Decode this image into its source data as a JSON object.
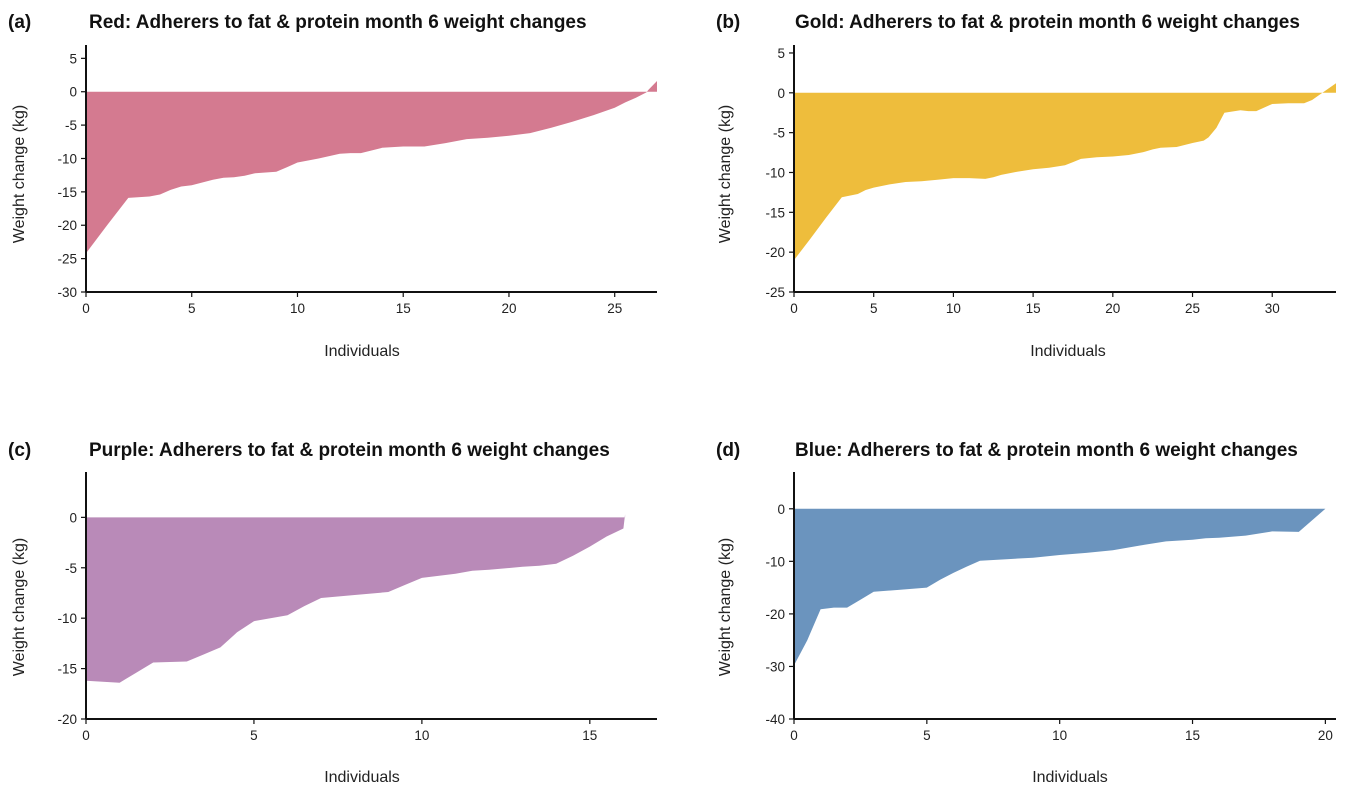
{
  "chart_data": [
    {
      "type": "area",
      "panel_label": "(a)",
      "title": "Red: Adherers to fat & protein month 6 weight changes",
      "xlabel": "Individuals",
      "ylabel": "Weight change (kg)",
      "color": "#d47a90",
      "xlim": [
        0,
        27
      ],
      "ylim": [
        -30,
        7
      ],
      "xticks": [
        0,
        5,
        10,
        15,
        20,
        25
      ],
      "yticks": [
        5,
        0,
        -5,
        -10,
        -15,
        -20,
        -25,
        -30
      ],
      "x": [
        0,
        1,
        2,
        3,
        3.5,
        4,
        4.5,
        5,
        6,
        6.5,
        7,
        7.5,
        8,
        9,
        9.5,
        10,
        10.5,
        11,
        12,
        12.5,
        13,
        13.5,
        14,
        15,
        16,
        17,
        18,
        19,
        20,
        21,
        22,
        23,
        24,
        25,
        25.5,
        26,
        26.5,
        26.6,
        27
      ],
      "values": [
        -24.2,
        -20,
        -15.9,
        -15.7,
        -15.4,
        -14.7,
        -14.2,
        -14.0,
        -13.2,
        -12.9,
        -12.8,
        -12.6,
        -12.2,
        -12.0,
        -11.3,
        -10.6,
        -10.3,
        -10.0,
        -9.3,
        -9.2,
        -9.2,
        -8.8,
        -8.4,
        -8.2,
        -8.2,
        -7.7,
        -7.1,
        -6.9,
        -6.6,
        -6.2,
        -5.4,
        -4.5,
        -3.5,
        -2.4,
        -1.6,
        -0.9,
        -0.1,
        0.3,
        1.6
      ]
    },
    {
      "type": "area",
      "panel_label": "(b)",
      "title": "Gold: Adherers to fat & protein month 6 weight changes",
      "xlabel": "Individuals",
      "ylabel": "Weight change (kg)",
      "color": "#eebd3c",
      "xlim": [
        0,
        34
      ],
      "ylim": [
        -25,
        6
      ],
      "xticks": [
        0,
        5,
        10,
        15,
        20,
        25,
        30
      ],
      "yticks": [
        5,
        0,
        -5,
        -10,
        -15,
        -20,
        -25
      ],
      "x": [
        0,
        1,
        2,
        3,
        3.5,
        4,
        4.5,
        5,
        6,
        7,
        8,
        9,
        10,
        11,
        12,
        12.5,
        13,
        14,
        15,
        16,
        17,
        17.5,
        18,
        19,
        20,
        21,
        22,
        22.5,
        23,
        24,
        25,
        25.7,
        26,
        26.5,
        27,
        28,
        28.5,
        29,
        30,
        31,
        32,
        32.5,
        33,
        34
      ],
      "values": [
        -21.0,
        -18.4,
        -15.7,
        -13.1,
        -12.9,
        -12.7,
        -12.2,
        -11.9,
        -11.5,
        -11.2,
        -11.1,
        -10.9,
        -10.7,
        -10.7,
        -10.8,
        -10.6,
        -10.3,
        -9.9,
        -9.6,
        -9.4,
        -9.1,
        -8.7,
        -8.3,
        -8.1,
        -8.0,
        -7.8,
        -7.4,
        -7.1,
        -6.9,
        -6.8,
        -6.3,
        -6.0,
        -5.6,
        -4.4,
        -2.5,
        -2.2,
        -2.3,
        -2.3,
        -1.4,
        -1.3,
        -1.3,
        -0.9,
        -0.2,
        1.2
      ]
    },
    {
      "type": "area",
      "panel_label": "(c)",
      "title": "Purple: Adherers to fat & protein month 6 weight changes",
      "xlabel": "Individuals",
      "ylabel": "Weight change (kg)",
      "color": "#b98ab8",
      "xlim": [
        0,
        17
      ],
      "ylim": [
        -20,
        4.5
      ],
      "xticks": [
        0,
        5,
        10,
        15
      ],
      "yticks": [
        0,
        -5,
        -10,
        -15,
        -20
      ],
      "x": [
        0,
        0.5,
        1,
        1.5,
        2,
        3,
        3.5,
        4,
        4.5,
        5,
        6,
        6.5,
        7,
        8,
        9,
        9.5,
        10,
        11,
        11.5,
        12,
        13,
        13.5,
        14,
        14.5,
        15,
        15.5,
        16,
        16.05
      ],
      "values": [
        -16.2,
        -16.3,
        -16.4,
        -15.4,
        -14.4,
        -14.3,
        -13.6,
        -12.9,
        -11.4,
        -10.3,
        -9.7,
        -8.8,
        -8.0,
        -7.7,
        -7.4,
        -6.7,
        -6.0,
        -5.6,
        -5.3,
        -5.2,
        -4.9,
        -4.8,
        -4.6,
        -3.8,
        -2.9,
        -1.9,
        -1.1,
        0.3
      ]
    },
    {
      "type": "area",
      "panel_label": "(d)",
      "title": "Blue: Adherers to fat & protein month 6 weight changes",
      "xlabel": "Individuals",
      "ylabel": "Weight change (kg)",
      "color": "#6b94be",
      "xlim": [
        0,
        20.4
      ],
      "ylim": [
        -40,
        7
      ],
      "xticks": [
        0,
        5,
        10,
        15,
        20
      ],
      "yticks": [
        0,
        -10,
        -20,
        -30,
        -40
      ],
      "x": [
        0,
        0.5,
        1,
        1.5,
        2,
        2.5,
        3,
        4,
        5,
        5.5,
        6,
        6.5,
        7,
        8,
        9,
        10,
        11,
        12,
        13,
        14,
        15,
        15.5,
        16,
        17,
        18,
        19,
        20
      ],
      "values": [
        -29.8,
        -25.0,
        -19.1,
        -18.8,
        -18.8,
        -17.3,
        -15.8,
        -15.4,
        -15.0,
        -13.5,
        -12.2,
        -11.0,
        -9.9,
        -9.6,
        -9.3,
        -8.8,
        -8.4,
        -7.9,
        -7.0,
        -6.2,
        -5.9,
        -5.6,
        -5.5,
        -5.1,
        -4.3,
        -4.4,
        0.0
      ]
    }
  ]
}
